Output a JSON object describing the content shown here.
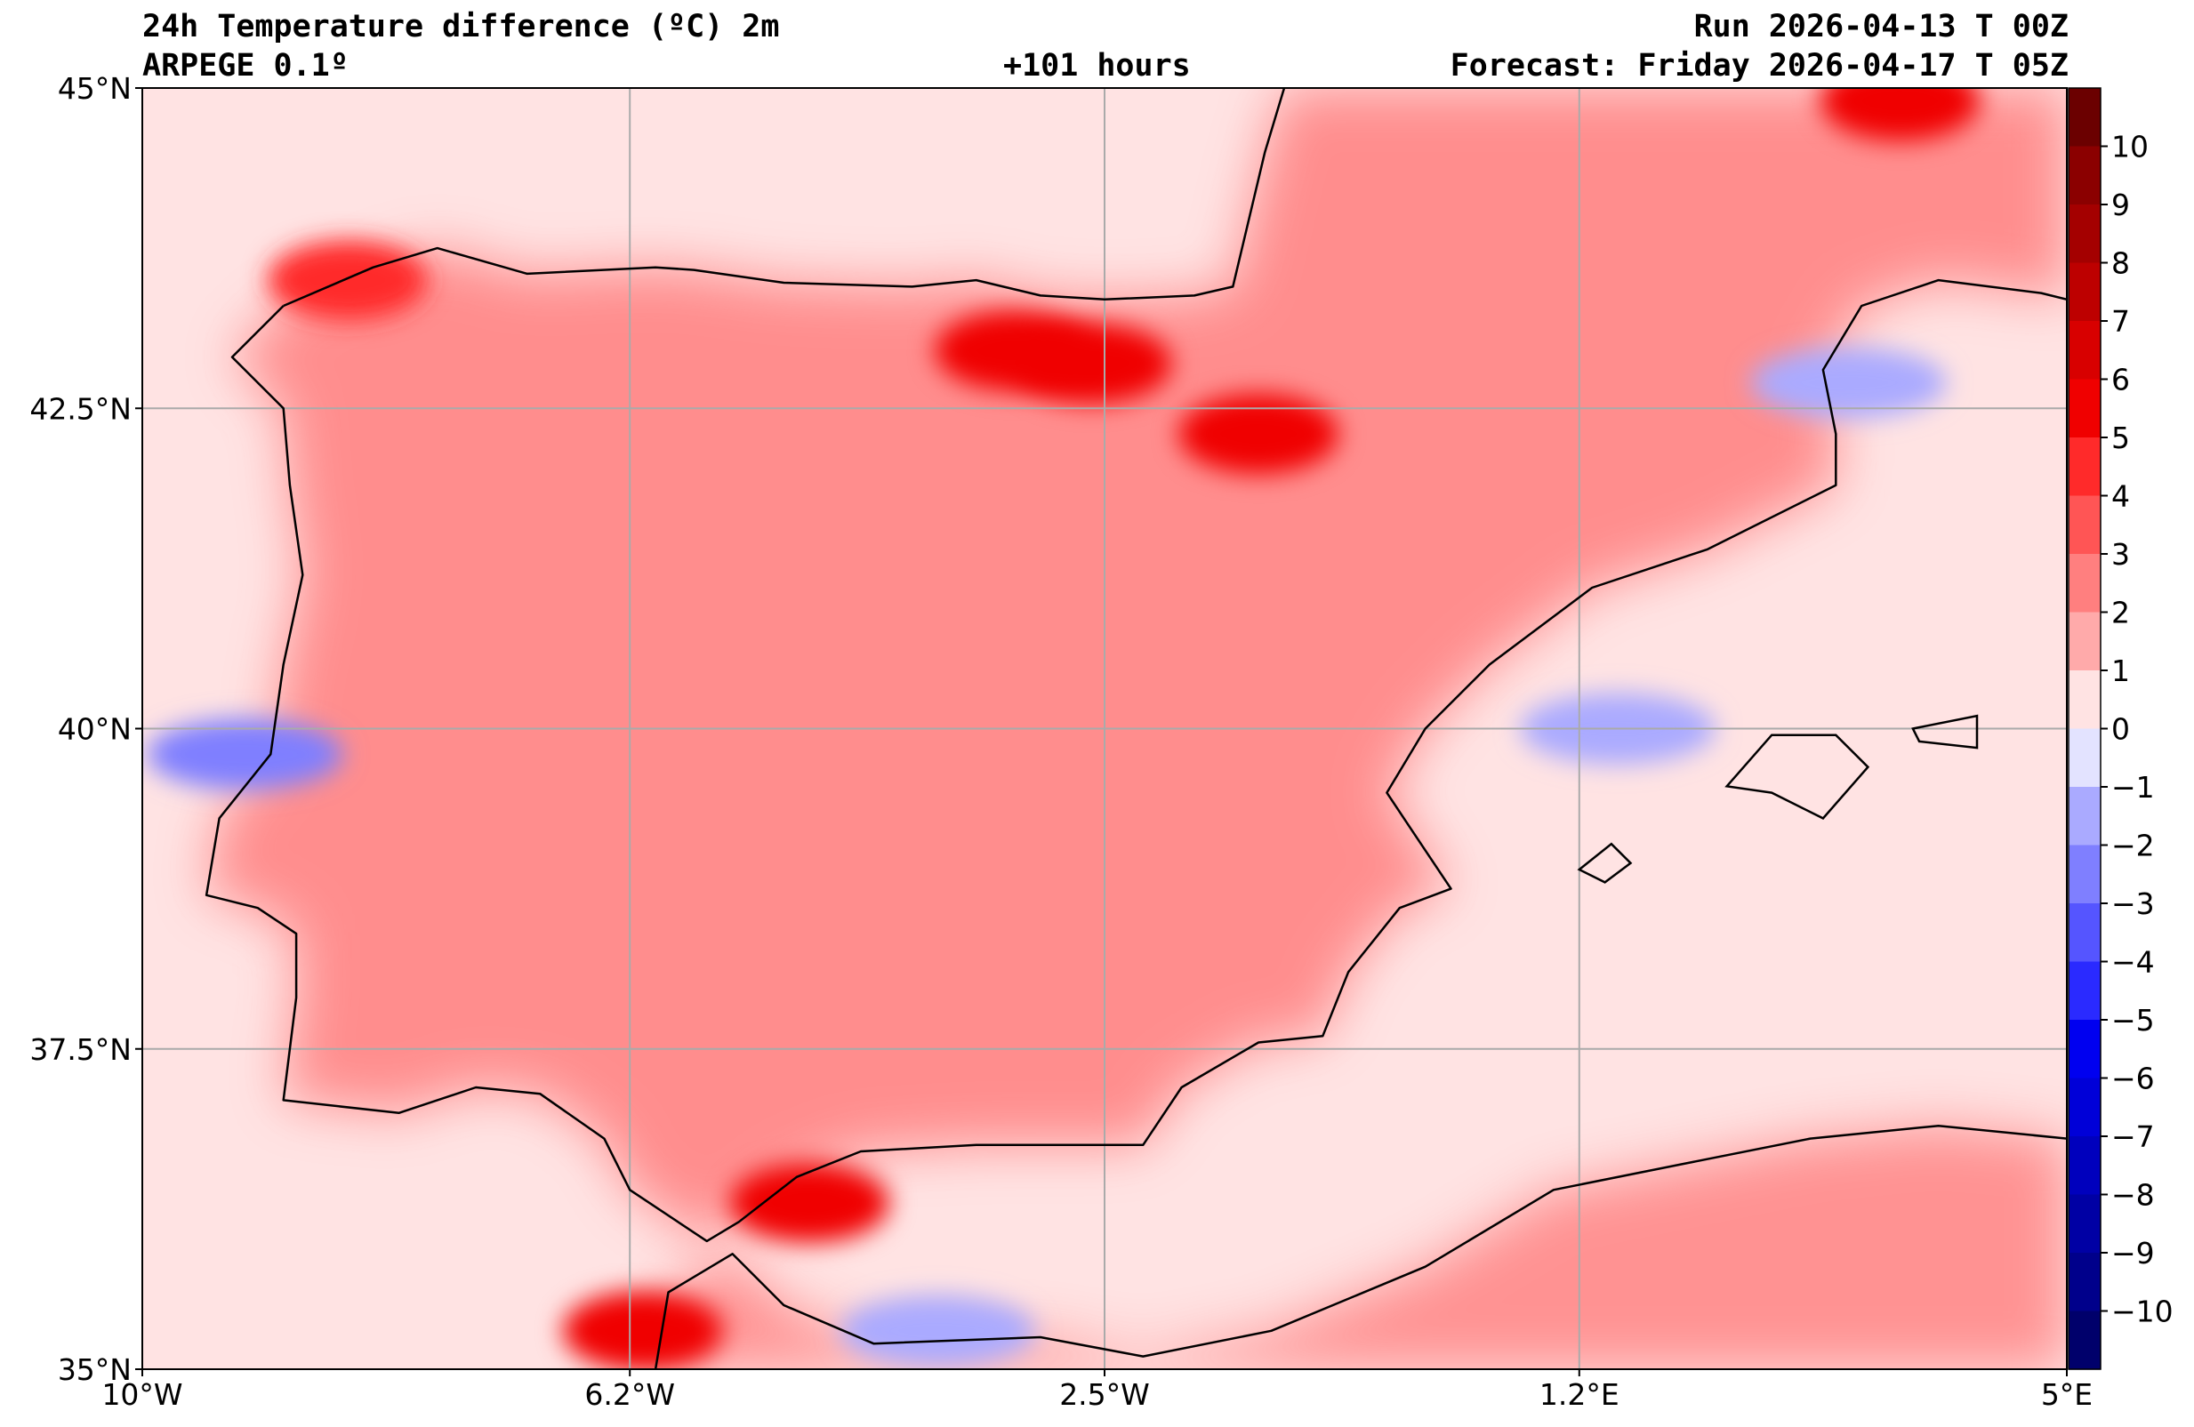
{
  "header": {
    "title": "24h Temperature difference (ºC) 2m",
    "model": "ARPEGE 0.1º",
    "lead_time": "+101 hours",
    "run": "Run 2026-04-13 T 00Z",
    "forecast": "Forecast: Friday 2026-04-17 T 05Z"
  },
  "map": {
    "lon_range": [
      -10,
      5
    ],
    "lat_range": [
      35,
      45
    ],
    "lon_ticks": [
      {
        "value": -10,
        "label": "10°W"
      },
      {
        "value": -6.2,
        "label": "6.2°W"
      },
      {
        "value": -2.5,
        "label": "2.5°W"
      },
      {
        "value": 1.2,
        "label": "1.2°E"
      },
      {
        "value": 5,
        "label": "5°E"
      }
    ],
    "lat_ticks": [
      {
        "value": 35,
        "label": "35°N"
      },
      {
        "value": 37.5,
        "label": "37.5°N"
      },
      {
        "value": 40,
        "label": "40°N"
      },
      {
        "value": 42.5,
        "label": "42.5°N"
      },
      {
        "value": 45,
        "label": "45°N"
      }
    ],
    "gridlines": true,
    "coastline": [
      [
        -8.9,
        43.3
      ],
      [
        -8.2,
        43.6
      ],
      [
        -7.7,
        43.75
      ],
      [
        -7.0,
        43.55
      ],
      [
        -6.0,
        43.6
      ],
      [
        -5.7,
        43.58
      ],
      [
        -5.0,
        43.48
      ],
      [
        -4.0,
        43.45
      ],
      [
        -3.5,
        43.5
      ],
      [
        -3.0,
        43.38
      ],
      [
        -2.5,
        43.35
      ],
      [
        -1.8,
        43.38
      ],
      [
        -1.5,
        43.45
      ],
      [
        -1.25,
        44.5
      ],
      [
        -1.1,
        45.0
      ]
    ],
    "atlantic_coast": [
      [
        -8.9,
        43.3
      ],
      [
        -9.3,
        42.9
      ],
      [
        -8.9,
        42.5
      ],
      [
        -8.85,
        41.9
      ],
      [
        -8.75,
        41.2
      ],
      [
        -8.9,
        40.5
      ],
      [
        -9.0,
        39.8
      ],
      [
        -9.4,
        39.3
      ],
      [
        -9.5,
        38.7
      ],
      [
        -9.1,
        38.6
      ],
      [
        -8.8,
        38.4
      ],
      [
        -8.8,
        37.9
      ],
      [
        -8.9,
        37.1
      ],
      [
        -8.0,
        37.0
      ],
      [
        -7.4,
        37.2
      ],
      [
        -6.9,
        37.15
      ],
      [
        -6.4,
        36.8
      ],
      [
        -6.2,
        36.4
      ],
      [
        -5.6,
        36.0
      ],
      [
        -5.35,
        36.15
      ],
      [
        -4.9,
        36.5
      ],
      [
        -4.4,
        36.7
      ],
      [
        -3.5,
        36.75
      ],
      [
        -2.9,
        36.75
      ],
      [
        -2.2,
        36.75
      ],
      [
        -1.9,
        37.2
      ],
      [
        -1.3,
        37.55
      ],
      [
        -0.8,
        37.6
      ],
      [
        -0.6,
        38.1
      ],
      [
        -0.2,
        38.6
      ],
      [
        0.2,
        38.75
      ],
      [
        -0.1,
        39.2
      ],
      [
        -0.3,
        39.5
      ],
      [
        0.0,
        40.0
      ],
      [
        0.5,
        40.5
      ],
      [
        0.9,
        40.8
      ],
      [
        1.3,
        41.1
      ],
      [
        2.2,
        41.4
      ],
      [
        3.2,
        41.9
      ],
      [
        3.2,
        42.3
      ],
      [
        3.1,
        42.8
      ],
      [
        3.4,
        43.3
      ],
      [
        4.0,
        43.5
      ],
      [
        4.8,
        43.4
      ],
      [
        5.0,
        43.35
      ]
    ],
    "africa_coast": [
      [
        -6.0,
        35.0
      ],
      [
        -5.9,
        35.6
      ],
      [
        -5.4,
        35.9
      ],
      [
        -5.0,
        35.5
      ],
      [
        -4.3,
        35.2
      ],
      [
        -3.0,
        35.25
      ],
      [
        -2.2,
        35.1
      ],
      [
        -1.2,
        35.3
      ],
      [
        0.0,
        35.8
      ],
      [
        1.0,
        36.4
      ],
      [
        2.0,
        36.6
      ],
      [
        3.0,
        36.8
      ],
      [
        4.0,
        36.9
      ],
      [
        5.0,
        36.8
      ]
    ],
    "islands": [
      [
        [
          2.35,
          39.55
        ],
        [
          2.7,
          39.95
        ],
        [
          3.2,
          39.95
        ],
        [
          3.45,
          39.7
        ],
        [
          3.1,
          39.3
        ],
        [
          2.7,
          39.5
        ],
        [
          2.35,
          39.55
        ]
      ],
      [
        [
          3.8,
          40.0
        ],
        [
          4.3,
          40.1
        ],
        [
          4.3,
          39.85
        ],
        [
          3.85,
          39.9
        ],
        [
          3.8,
          40.0
        ]
      ],
      [
        [
          1.2,
          38.9
        ],
        [
          1.45,
          39.1
        ],
        [
          1.6,
          38.95
        ],
        [
          1.4,
          38.8
        ],
        [
          1.2,
          38.9
        ]
      ]
    ],
    "hotspots": [
      {
        "lon": -3.2,
        "lat": 42.95,
        "value": 5
      },
      {
        "lon": -2.6,
        "lat": 42.85,
        "value": 5
      },
      {
        "lon": -1.3,
        "lat": 42.3,
        "value": 5
      },
      {
        "lon": -4.8,
        "lat": 36.3,
        "value": 5
      },
      {
        "lon": 3.7,
        "lat": 44.9,
        "value": 5
      },
      {
        "lon": -6.1,
        "lat": 35.3,
        "value": 5
      },
      {
        "lon": -8.4,
        "lat": 43.5,
        "value": 4
      }
    ],
    "coldspots": [
      {
        "lon": -9.2,
        "lat": 39.8,
        "value": -3
      },
      {
        "lon": -3.8,
        "lat": 35.3,
        "value": -2
      },
      {
        "lon": 3.3,
        "lat": 42.7,
        "value": -2
      },
      {
        "lon": 1.5,
        "lat": 40.0,
        "value": -2
      }
    ]
  },
  "colorbar": {
    "levels": [
      10,
      9,
      8,
      7,
      6,
      5,
      4,
      3,
      2,
      1,
      0,
      -1,
      -2,
      -3,
      -4,
      -5,
      -6,
      -7,
      -8,
      -9,
      -10
    ],
    "labels": [
      "10",
      "9",
      "8",
      "7",
      "6",
      "5",
      "4",
      "3",
      "2",
      "1",
      "0",
      "−1",
      "−2",
      "−3",
      "−4",
      "−5",
      "−6",
      "−7",
      "−8",
      "−9",
      "−10"
    ],
    "colors": [
      "#6b0000",
      "#8b0000",
      "#a40000",
      "#bd0000",
      "#d80000",
      "#f00000",
      "#ff2a2a",
      "#ff5555",
      "#ff7f7f",
      "#ffaaaa",
      "#ffe3e3",
      "#e3e3ff",
      "#aaaaff",
      "#7f7fff",
      "#5555ff",
      "#2a2aff",
      "#0000f0",
      "#0000d8",
      "#0000bd",
      "#0000a4",
      "#00008b",
      "#00006b"
    ]
  }
}
